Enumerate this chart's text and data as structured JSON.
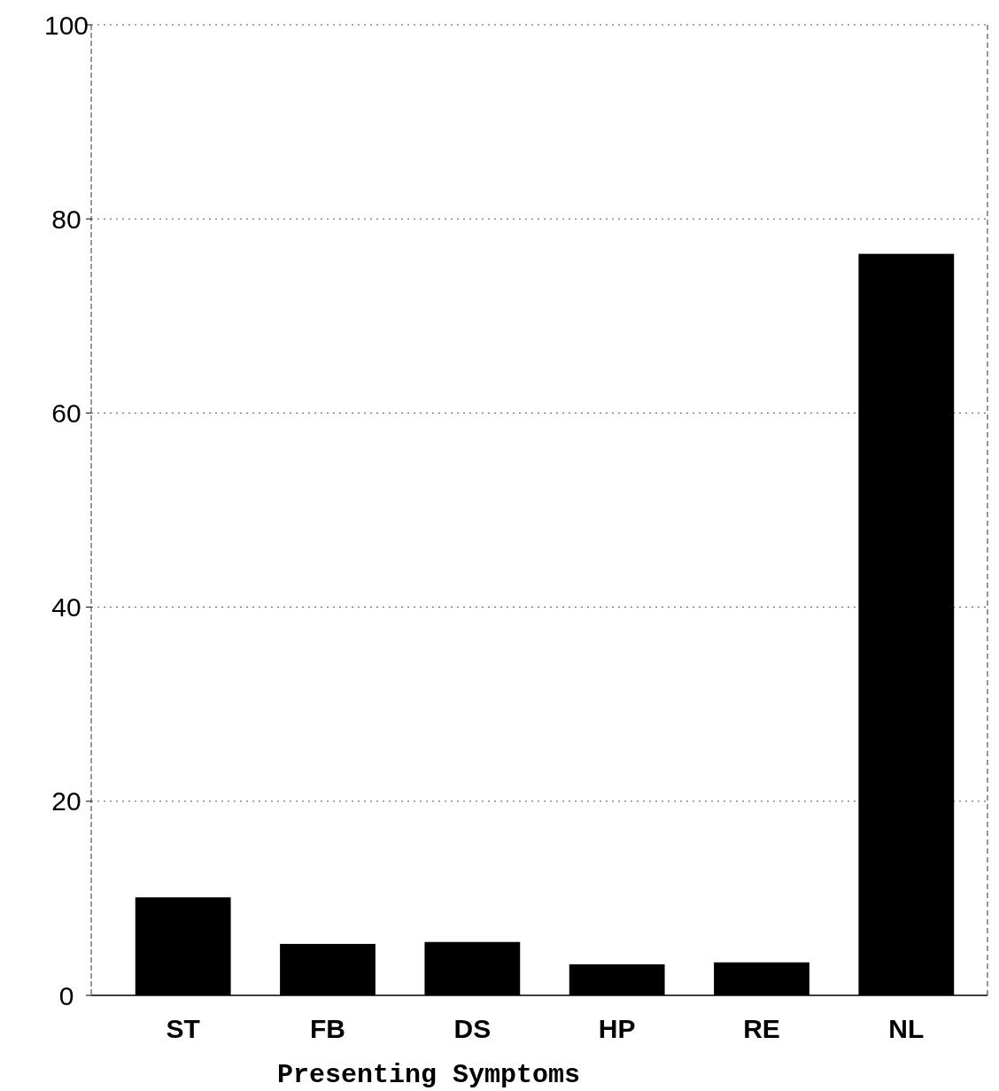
{
  "chart_data": {
    "type": "bar",
    "xlabel": "Presenting Symptoms",
    "categories": [
      "ST",
      "FB",
      "DS",
      "HP",
      "RE",
      "NL"
    ],
    "values": [
      10.1,
      5.3,
      5.5,
      3.2,
      3.4,
      76.4
    ],
    "color": "#000000",
    "ylim": [
      0,
      100
    ],
    "yticks": [
      0,
      20,
      40,
      60,
      80,
      100
    ],
    "grid": "y"
  }
}
